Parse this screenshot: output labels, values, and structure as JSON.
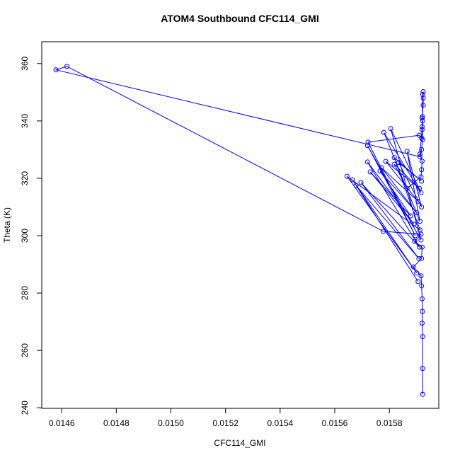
{
  "chart_data": {
    "type": "line",
    "title": "ATOM4 Southbound CFC114_GMI",
    "x_label": "CFC114_GMI",
    "y_label": "Theta (K)",
    "color": "#0000ff",
    "markers": "open-circle",
    "xlim": [
      0.014527,
      0.015981
    ],
    "ylim": [
      239.8,
      367.6
    ],
    "xticks": [
      0.0146,
      0.0148,
      {
        "value": 0.015,
        "label": "0.0150"
      },
      0.0152,
      0.0154,
      0.0156,
      0.0158
    ],
    "yticks": [
      240,
      260,
      280,
      300,
      320,
      340,
      360
    ],
    "x": [
      0.015922,
      0.015922,
      0.015922,
      0.01592,
      0.015921,
      0.01592,
      0.015918,
      0.015916,
      0.015888,
      0.015918,
      0.01592,
      0.015893,
      0.015916,
      0.015778,
      0.014619,
      0.014579,
      0.015912,
      0.015918,
      0.015922,
      0.01592,
      0.015924,
      0.015924,
      0.015924,
      0.015922,
      0.015921,
      0.015918,
      0.015909,
      0.015722,
      0.015895,
      0.01572,
      0.015916,
      0.015805,
      0.015916,
      0.01578,
      0.015912,
      0.015865,
      0.015918,
      0.015834,
      0.015918,
      0.015818,
      0.015912,
      0.015645,
      0.0159,
      0.015665,
      0.015905,
      0.015678,
      0.015908,
      0.015696,
      0.01591,
      0.01572,
      0.01589,
      0.01573,
      0.015878,
      0.015766,
      0.0159,
      0.015771,
      0.015905,
      0.015787,
      0.01591,
      0.015818,
      0.015865,
      0.015916,
      0.015918,
      0.01592,
      0.015912,
      0.01592,
      0.015922,
      0.01592
    ],
    "y": [
      244.7,
      253.7,
      264.8,
      269.5,
      273.6,
      278,
      282.5,
      286,
      289.1,
      292,
      296,
      298,
      300.5,
      301.5,
      359,
      357.8,
      327.5,
      330,
      333.5,
      341,
      345.5,
      348,
      350.2,
      349.2,
      341.5,
      334,
      335,
      332.6,
      300,
      331.4,
      298.5,
      337.3,
      315,
      336,
      305,
      329.4,
      310,
      325.5,
      319,
      327.2,
      302,
      320.7,
      287,
      319.5,
      284,
      317.5,
      292,
      318.5,
      296,
      325.7,
      304,
      322.2,
      306.9,
      322.5,
      308,
      323.7,
      312,
      325.9,
      316.5,
      324.9,
      316.5,
      320.5,
      323,
      326,
      328.5,
      337,
      340,
      338
    ]
  }
}
